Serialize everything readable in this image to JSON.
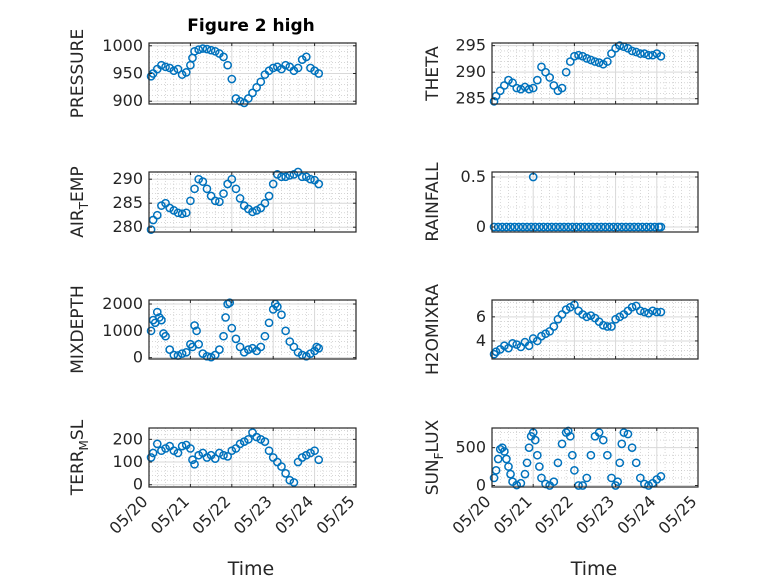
{
  "figure": {
    "title": "Figure 2 high",
    "xlabel": "Time"
  },
  "colors": {
    "marker": "#0072BD",
    "axis": "#262626",
    "grid": "#d9d9d9",
    "minor_grid": "#bdbdbd"
  },
  "x_ticks": [
    "05/20",
    "05/21",
    "05/22",
    "05/23",
    "05/24",
    "05/25"
  ],
  "chart_data": [
    {
      "type": "scatter",
      "ylabel": "PRESSURE",
      "ylabel_sub": "",
      "ylim": [
        895,
        1005
      ],
      "yticks": [
        900,
        950,
        1000
      ],
      "x": [
        0.05,
        0.1,
        0.2,
        0.3,
        0.4,
        0.5,
        0.6,
        0.7,
        0.8,
        0.9,
        1.0,
        1.05,
        1.1,
        1.2,
        1.3,
        1.4,
        1.5,
        1.6,
        1.7,
        1.8,
        1.9,
        2.0,
        2.1,
        2.2,
        2.3,
        2.4,
        2.5,
        2.6,
        2.7,
        2.8,
        2.9,
        3.0,
        3.1,
        3.2,
        3.3,
        3.4,
        3.5,
        3.6,
        3.7,
        3.8,
        3.9,
        4.0,
        4.1
      ],
      "y": [
        945,
        950,
        958,
        965,
        962,
        960,
        955,
        958,
        948,
        952,
        965,
        978,
        990,
        993,
        995,
        994,
        992,
        990,
        986,
        980,
        965,
        940,
        905,
        900,
        897,
        905,
        915,
        925,
        935,
        948,
        955,
        960,
        962,
        958,
        965,
        962,
        955,
        960,
        975,
        980,
        960,
        955,
        950
      ]
    },
    {
      "type": "scatter",
      "ylabel": "THETA",
      "ylabel_sub": "",
      "ylim": [
        284,
        295.5
      ],
      "yticks": [
        285,
        290,
        295
      ],
      "x": [
        0.05,
        0.1,
        0.2,
        0.3,
        0.4,
        0.5,
        0.6,
        0.7,
        0.8,
        0.9,
        1.0,
        1.1,
        1.2,
        1.3,
        1.4,
        1.5,
        1.6,
        1.7,
        1.8,
        1.9,
        2.0,
        2.1,
        2.2,
        2.3,
        2.4,
        2.5,
        2.6,
        2.7,
        2.8,
        2.9,
        3.0,
        3.1,
        3.2,
        3.3,
        3.4,
        3.5,
        3.6,
        3.7,
        3.8,
        3.9,
        4.0,
        4.1
      ],
      "y": [
        284.5,
        285.5,
        286.5,
        287.5,
        288.5,
        288,
        287,
        286.8,
        287.2,
        286.8,
        287,
        288.5,
        291,
        290,
        289,
        287.5,
        286.5,
        287,
        290,
        292,
        293,
        293.2,
        293,
        292.6,
        292.3,
        292,
        291.8,
        291.5,
        292,
        293.5,
        294.5,
        295,
        294.8,
        294.5,
        294,
        293.8,
        293.5,
        293.5,
        293.2,
        293.2,
        293.5,
        293
      ]
    },
    {
      "type": "scatter",
      "ylabel": "AIR",
      "ylabel_sub": "T",
      "ylabel_rest": "EMP",
      "ylim": [
        279,
        291.5
      ],
      "yticks": [
        280,
        285,
        290
      ],
      "x": [
        0.05,
        0.1,
        0.2,
        0.3,
        0.4,
        0.5,
        0.6,
        0.7,
        0.8,
        0.9,
        1.0,
        1.1,
        1.2,
        1.3,
        1.4,
        1.5,
        1.6,
        1.7,
        1.8,
        1.9,
        2.0,
        2.1,
        2.2,
        2.3,
        2.4,
        2.5,
        2.6,
        2.7,
        2.8,
        2.9,
        3.0,
        3.1,
        3.2,
        3.3,
        3.4,
        3.5,
        3.6,
        3.7,
        3.8,
        3.9,
        4.0,
        4.1
      ],
      "y": [
        279.5,
        281.5,
        282.5,
        284.5,
        285,
        284,
        283.5,
        283,
        282.8,
        283,
        285.5,
        288,
        290,
        289.5,
        288,
        286.5,
        285.5,
        285.3,
        287,
        289,
        290,
        288,
        286,
        284.5,
        283.8,
        283.2,
        283.5,
        284,
        285,
        286.5,
        289,
        291,
        290.5,
        290.5,
        290.8,
        291,
        291.5,
        290.5,
        290.5,
        290,
        289.8,
        289
      ]
    },
    {
      "type": "scatter",
      "ylabel": "RAINFALL",
      "ylabel_sub": "",
      "ylim": [
        -0.05,
        0.55
      ],
      "yticks": [
        0,
        0.5
      ],
      "x": [
        0.05,
        0.15,
        0.25,
        0.35,
        0.45,
        0.55,
        0.65,
        0.75,
        0.85,
        0.95,
        1.05,
        1.15,
        1.25,
        1.35,
        1.45,
        1.55,
        1.65,
        1.75,
        1.85,
        1.95,
        2.05,
        2.15,
        2.25,
        2.35,
        2.45,
        2.55,
        2.65,
        2.75,
        2.85,
        2.95,
        3.05,
        3.15,
        3.25,
        3.35,
        3.45,
        3.55,
        3.65,
        3.75,
        3.85,
        3.95,
        4.05,
        4.1,
        1.0
      ],
      "y": [
        0,
        0,
        0,
        0,
        0,
        0,
        0,
        0,
        0,
        0,
        0,
        0,
        0,
        0,
        0,
        0,
        0,
        0,
        0,
        0,
        0,
        0,
        0,
        0,
        0,
        0,
        0,
        0,
        0,
        0,
        0,
        0,
        0,
        0,
        0,
        0,
        0,
        0,
        0,
        0,
        0,
        0,
        0.5
      ]
    },
    {
      "type": "scatter",
      "ylabel": "MIXDEPTH",
      "ylabel_sub": "",
      "ylim": [
        -50,
        2150
      ],
      "yticks": [
        0,
        1000,
        2000
      ],
      "x": [
        0.05,
        0.1,
        0.15,
        0.2,
        0.25,
        0.3,
        0.35,
        0.4,
        0.5,
        0.6,
        0.7,
        0.8,
        0.9,
        1.0,
        1.05,
        1.1,
        1.15,
        1.2,
        1.3,
        1.4,
        1.5,
        1.6,
        1.7,
        1.8,
        1.85,
        1.9,
        1.95,
        2.0,
        2.1,
        2.2,
        2.3,
        2.4,
        2.5,
        2.6,
        2.7,
        2.8,
        2.9,
        3.0,
        3.05,
        3.1,
        3.2,
        3.3,
        3.4,
        3.5,
        3.6,
        3.7,
        3.8,
        3.9,
        4.0,
        4.05,
        4.1
      ],
      "y": [
        1000,
        1400,
        1300,
        1700,
        1500,
        1400,
        900,
        800,
        300,
        100,
        80,
        150,
        200,
        500,
        400,
        1200,
        1000,
        500,
        150,
        50,
        20,
        100,
        300,
        800,
        1500,
        2000,
        2050,
        1100,
        700,
        400,
        200,
        300,
        350,
        250,
        400,
        800,
        1300,
        1800,
        2000,
        1900,
        1600,
        1000,
        600,
        400,
        200,
        100,
        50,
        150,
        250,
        400,
        350
      ]
    },
    {
      "type": "scatter",
      "ylabel": "H2OMIXRA",
      "ylabel_sub": "",
      "ylim": [
        2.5,
        7.4
      ],
      "yticks": [
        4,
        6
      ],
      "x": [
        0.05,
        0.1,
        0.2,
        0.3,
        0.4,
        0.5,
        0.6,
        0.7,
        0.8,
        0.9,
        1.0,
        1.1,
        1.2,
        1.3,
        1.4,
        1.5,
        1.6,
        1.7,
        1.8,
        1.9,
        2.0,
        2.1,
        2.2,
        2.3,
        2.4,
        2.5,
        2.6,
        2.7,
        2.8,
        2.9,
        3.0,
        3.1,
        3.2,
        3.3,
        3.4,
        3.5,
        3.6,
        3.7,
        3.8,
        3.9,
        4.0,
        4.1
      ],
      "y": [
        2.9,
        3.1,
        3.3,
        3.6,
        3.4,
        3.8,
        3.7,
        3.5,
        3.9,
        3.6,
        4.2,
        4.0,
        4.4,
        4.6,
        4.8,
        5.2,
        5.8,
        6.2,
        6.6,
        6.8,
        7.0,
        6.5,
        6.2,
        6.0,
        6.1,
        5.9,
        5.6,
        5.3,
        5.2,
        5.2,
        5.8,
        6.0,
        6.2,
        6.5,
        6.8,
        6.9,
        6.5,
        6.4,
        6.3,
        6.5,
        6.4,
        6.4
      ]
    },
    {
      "type": "scatter",
      "ylabel": "TERR",
      "ylabel_sub": "M",
      "ylabel_rest": "SL",
      "ylim": [
        -10,
        250
      ],
      "yticks": [
        0,
        100,
        200
      ],
      "x": [
        0.05,
        0.1,
        0.2,
        0.3,
        0.4,
        0.5,
        0.6,
        0.7,
        0.8,
        0.9,
        1.0,
        1.05,
        1.1,
        1.2,
        1.3,
        1.4,
        1.5,
        1.6,
        1.7,
        1.8,
        1.9,
        2.0,
        2.1,
        2.2,
        2.3,
        2.4,
        2.5,
        2.6,
        2.7,
        2.8,
        2.9,
        3.0,
        3.1,
        3.2,
        3.3,
        3.4,
        3.5,
        3.6,
        3.7,
        3.8,
        3.9,
        4.0,
        4.1
      ],
      "y": [
        120,
        140,
        180,
        150,
        160,
        170,
        150,
        140,
        170,
        175,
        160,
        110,
        90,
        130,
        140,
        120,
        130,
        115,
        140,
        130,
        125,
        150,
        160,
        180,
        190,
        200,
        230,
        210,
        200,
        190,
        150,
        120,
        100,
        80,
        50,
        20,
        10,
        100,
        120,
        130,
        140,
        150,
        110
      ]
    },
    {
      "type": "scatter",
      "ylabel": "SUN",
      "ylabel_sub": "F",
      "ylabel_rest": "LUX",
      "ylim": [
        -20,
        760
      ],
      "yticks": [
        0,
        500
      ],
      "x": [
        0.05,
        0.1,
        0.15,
        0.2,
        0.25,
        0.3,
        0.35,
        0.4,
        0.45,
        0.5,
        0.6,
        0.7,
        0.8,
        0.85,
        0.9,
        0.95,
        1.0,
        1.05,
        1.1,
        1.15,
        1.2,
        1.3,
        1.4,
        1.5,
        1.6,
        1.7,
        1.8,
        1.85,
        1.9,
        1.95,
        2.0,
        2.1,
        2.2,
        2.3,
        2.4,
        2.5,
        2.6,
        2.7,
        2.8,
        2.9,
        3.0,
        3.05,
        3.1,
        3.15,
        3.2,
        3.3,
        3.4,
        3.5,
        3.6,
        3.7,
        3.8,
        3.9,
        4.0,
        4.1
      ],
      "y": [
        100,
        200,
        350,
        480,
        500,
        450,
        350,
        250,
        150,
        50,
        5,
        30,
        150,
        300,
        500,
        650,
        700,
        600,
        400,
        250,
        100,
        20,
        0,
        50,
        300,
        550,
        700,
        720,
        650,
        400,
        200,
        0,
        0,
        100,
        400,
        650,
        700,
        600,
        400,
        100,
        0,
        50,
        300,
        550,
        700,
        680,
        500,
        300,
        100,
        20,
        0,
        30,
        80,
        120
      ]
    }
  ]
}
